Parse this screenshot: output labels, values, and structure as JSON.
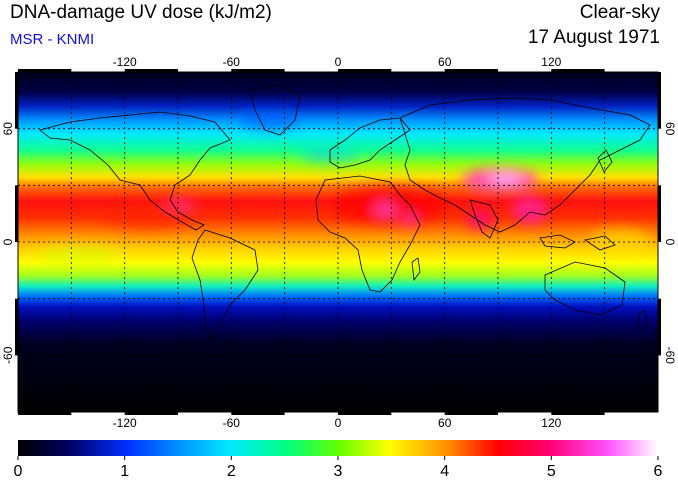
{
  "header": {
    "title": "DNA-damage UV dose (kJ/m2)",
    "credit": "MSR - KNMI",
    "sky_condition": "Clear-sky",
    "date": "17 August 1971"
  },
  "map": {
    "longitude_ticks": [
      "-120",
      "-60",
      "0",
      "60",
      "120"
    ],
    "latitude_ticks": [
      "60",
      "0",
      "-60"
    ],
    "grid": "dashed, every 30 degrees"
  },
  "colorbar": {
    "labels": [
      "0",
      "1",
      "2",
      "3",
      "4",
      "5",
      "6"
    ],
    "range": [
      0,
      6
    ],
    "colors": [
      "#000000",
      "#000080",
      "#0050ff",
      "#00e0ff",
      "#00ff60",
      "#c8ff00",
      "#ffff00",
      "#ff9000",
      "#ff0000",
      "#ff20a0",
      "#ff80ff",
      "#ffffff"
    ]
  }
}
